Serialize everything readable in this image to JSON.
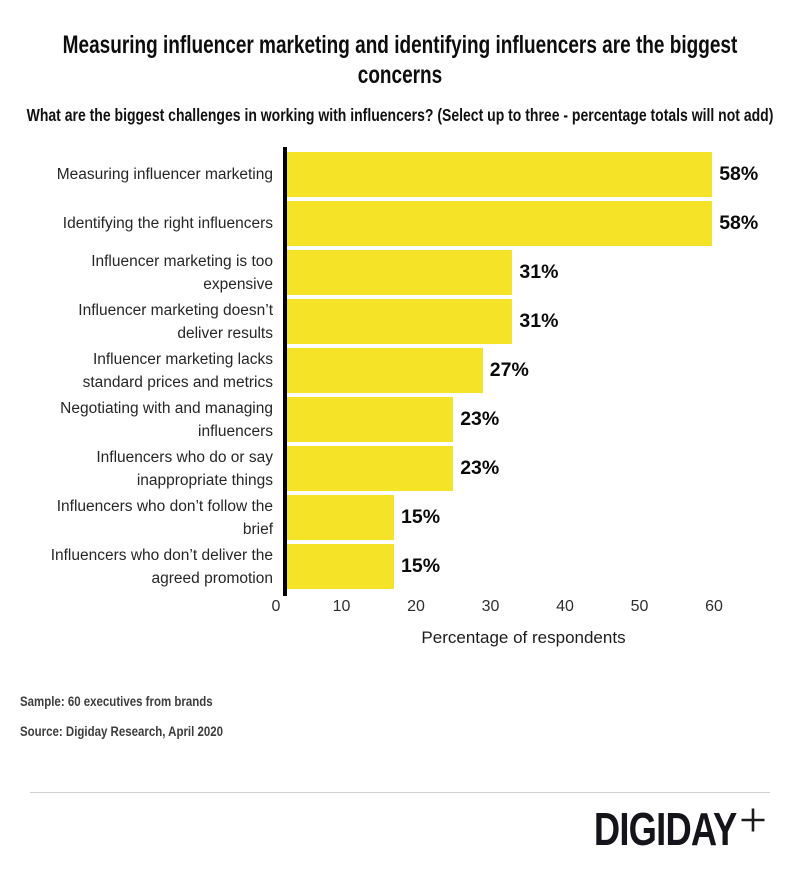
{
  "header": {
    "title": "Measuring influencer marketing and identifying influencers are the biggest concerns",
    "subtitle": "What are the biggest challenges in working with influencers? (Select up to three - percentage totals will not add)"
  },
  "chart_data": {
    "type": "bar",
    "orientation": "horizontal",
    "categories": [
      "Measuring influencer marketing",
      "Identifying the right influencers",
      "Influencer marketing is too expensive",
      "Influencer marketing doesn’t deliver results",
      "Influencer marketing lacks standard prices and metrics",
      "Negotiating with and managing influencers",
      "Influencers who do or say inappropriate things",
      "Influencers who don’t follow the brief",
      "Influencers who don’t deliver the agreed promotion"
    ],
    "values": [
      58,
      58,
      31,
      31,
      27,
      23,
      23,
      15,
      15
    ],
    "value_labels": [
      "58%",
      "58%",
      "31%",
      "31%",
      "27%",
      "23%",
      "23%",
      "15%",
      "15%"
    ],
    "xlabel": "Percentage of respondents",
    "xticks": [
      0,
      10,
      20,
      30,
      40,
      50,
      60
    ],
    "xlim": [
      0,
      64
    ],
    "grid": false,
    "legend": "none",
    "bar_color": "#F5E328",
    "value_label_position": "end-of-bar"
  },
  "footer": {
    "sample": "Sample: 60 executives from brands",
    "source": "Source: Digiday Research, April 2020"
  },
  "branding": {
    "logo_text": "DIGIDAY",
    "logo_plus": "plus"
  }
}
